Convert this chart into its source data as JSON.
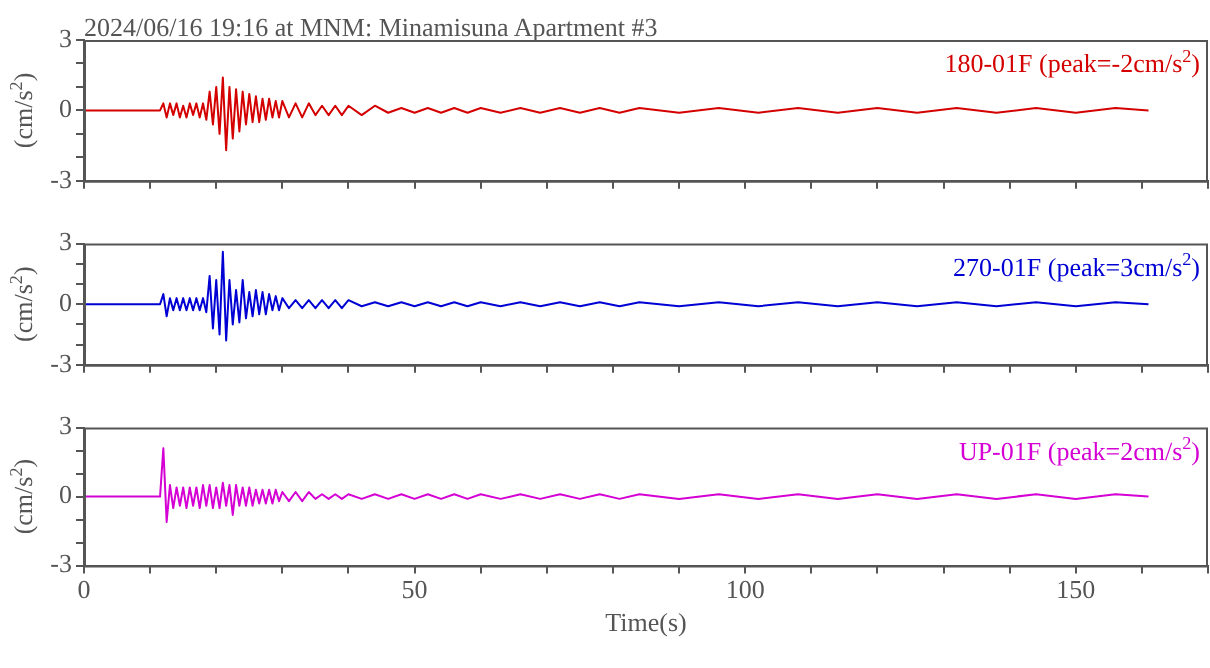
{
  "chart_data": [
    {
      "type": "line",
      "title": "2024/06/16 19:16 at MNM: Minamisuna Apartment #3",
      "ylabel": "(cm/s$^{2}$)",
      "xlim": [
        0,
        170
      ],
      "ylim": [
        -3,
        3
      ],
      "tick_labels": "y",
      "legend": false,
      "marker": "none",
      "xticks": [
        0,
        {
          "value": 10,
          "label": null
        },
        {
          "value": 20,
          "label": null
        },
        {
          "value": 30,
          "label": null
        },
        {
          "value": 40,
          "label": null
        },
        50,
        {
          "value": 60,
          "label": null
        },
        {
          "value": 70,
          "label": null
        },
        {
          "value": 80,
          "label": null
        },
        {
          "value": 90,
          "label": null
        },
        100,
        {
          "value": 110,
          "label": null
        },
        {
          "value": 120,
          "label": null
        },
        {
          "value": 130,
          "label": null
        },
        {
          "value": 140,
          "label": null
        },
        150,
        {
          "value": 160,
          "label": null
        },
        {
          "value": 170,
          "label": null
        }
      ],
      "yticks": [
        -3,
        {
          "value": -2,
          "label": null
        },
        {
          "value": -1,
          "label": null
        },
        0,
        {
          "value": 1,
          "label": null
        },
        {
          "value": 2,
          "label": null
        },
        3
      ],
      "x": [
        0,
        11.5,
        12,
        12.5,
        13,
        13.5,
        14,
        14.5,
        15,
        15.5,
        16,
        16.5,
        17,
        17.5,
        18,
        18.5,
        19,
        19.5,
        20,
        20.5,
        21,
        21.5,
        22,
        22.5,
        23,
        23.5,
        24,
        24.5,
        25,
        25.5,
        26,
        26.5,
        27,
        27.5,
        28,
        28.5,
        29,
        29.5,
        30,
        31,
        32,
        33,
        34,
        35,
        36,
        37,
        38,
        39,
        40,
        42,
        44,
        46,
        48,
        50,
        52,
        54,
        56,
        58,
        60,
        63,
        66,
        69,
        72,
        75,
        78,
        81,
        84,
        90,
        96,
        102,
        108,
        114,
        120,
        126,
        132,
        138,
        144,
        150,
        156,
        161
      ],
      "series": [
        {
          "name": "180-01F (peak=-2cm/s$^{2}$)",
          "color": "#d40000",
          "values": [
            0,
            0,
            0.3,
            -0.3,
            0.3,
            -0.2,
            0.3,
            -0.3,
            0.2,
            -0.3,
            0.3,
            -0.2,
            0.3,
            -0.3,
            0.3,
            -0.4,
            0.8,
            -0.6,
            1.0,
            -1.0,
            1.4,
            -1.7,
            1.0,
            -1.2,
            0.9,
            -0.9,
            0.8,
            -0.6,
            0.7,
            -0.5,
            0.6,
            -0.5,
            0.5,
            -0.4,
            0.5,
            -0.3,
            0.4,
            -0.3,
            0.4,
            -0.3,
            0.3,
            -0.3,
            0.3,
            -0.2,
            0.2,
            -0.2,
            0.2,
            -0.2,
            0.2,
            -0.2,
            0.2,
            -0.1,
            0.1,
            -0.1,
            0.1,
            -0.1,
            0.1,
            -0.1,
            0.1,
            -0.1,
            0.1,
            -0.1,
            0.1,
            -0.1,
            0.1,
            -0.1,
            0.1,
            -0.1,
            0.1,
            -0.1,
            0.1,
            -0.1,
            0.1,
            -0.1,
            0.1,
            -0.1,
            0.1,
            -0.1,
            0.1,
            0
          ]
        }
      ]
    },
    {
      "type": "line",
      "ylabel": "(cm/s$^{2}$)",
      "xlim": [
        0,
        170
      ],
      "ylim": [
        -3,
        3
      ],
      "tick_labels": "y",
      "legend": false,
      "marker": "none",
      "xticks": [
        0,
        {
          "value": 10,
          "label": null
        },
        {
          "value": 20,
          "label": null
        },
        {
          "value": 30,
          "label": null
        },
        {
          "value": 40,
          "label": null
        },
        50,
        {
          "value": 60,
          "label": null
        },
        {
          "value": 70,
          "label": null
        },
        {
          "value": 80,
          "label": null
        },
        {
          "value": 90,
          "label": null
        },
        100,
        {
          "value": 110,
          "label": null
        },
        {
          "value": 120,
          "label": null
        },
        {
          "value": 130,
          "label": null
        },
        {
          "value": 140,
          "label": null
        },
        150,
        {
          "value": 160,
          "label": null
        },
        {
          "value": 170,
          "label": null
        }
      ],
      "yticks": [
        -3,
        {
          "value": -2,
          "label": null
        },
        {
          "value": -1,
          "label": null
        },
        0,
        {
          "value": 1,
          "label": null
        },
        {
          "value": 2,
          "label": null
        },
        3
      ],
      "x": [
        0,
        11.5,
        12,
        12.5,
        13,
        13.5,
        14,
        14.5,
        15,
        15.5,
        16,
        16.5,
        17,
        17.5,
        18,
        18.5,
        19,
        19.5,
        20,
        20.5,
        21,
        21.5,
        22,
        22.5,
        23,
        23.5,
        24,
        24.5,
        25,
        25.5,
        26,
        26.5,
        27,
        27.5,
        28,
        28.5,
        29,
        29.5,
        30,
        31,
        32,
        33,
        34,
        35,
        36,
        37,
        38,
        39,
        40,
        42,
        44,
        46,
        48,
        50,
        52,
        54,
        56,
        58,
        60,
        63,
        66,
        69,
        72,
        75,
        78,
        81,
        84,
        90,
        96,
        102,
        108,
        114,
        120,
        126,
        132,
        138,
        144,
        150,
        156,
        161
      ],
      "series": [
        {
          "name": "270-01F (peak=3cm/s$^{2}$)",
          "color": "#0000d4",
          "values": [
            0,
            0,
            0.5,
            -0.6,
            0.3,
            -0.3,
            0.3,
            -0.3,
            0.3,
            -0.3,
            0.3,
            -0.3,
            0.3,
            -0.3,
            0.3,
            -0.4,
            1.4,
            -1.2,
            1.2,
            -1.5,
            2.6,
            -1.8,
            1.2,
            -1.0,
            0.7,
            -0.9,
            1.2,
            -0.7,
            0.6,
            -0.6,
            0.7,
            -0.5,
            0.6,
            -0.5,
            0.5,
            -0.3,
            0.4,
            -0.3,
            0.3,
            -0.2,
            0.2,
            -0.2,
            0.2,
            -0.2,
            0.2,
            -0.2,
            0.2,
            -0.2,
            0.2,
            -0.1,
            0.1,
            -0.1,
            0.1,
            -0.1,
            0.1,
            -0.1,
            0.1,
            -0.1,
            0.1,
            -0.1,
            0.1,
            -0.1,
            0.1,
            -0.1,
            0.1,
            -0.1,
            0.1,
            -0.1,
            0.1,
            -0.1,
            0.1,
            -0.1,
            0.1,
            -0.1,
            0.1,
            -0.1,
            0.1,
            -0.1,
            0.1,
            0
          ]
        }
      ]
    },
    {
      "type": "line",
      "ylabel": "(cm/s$^{2}$)",
      "xlabel": "Time(s)",
      "xlim": [
        0,
        170
      ],
      "ylim": [
        -3,
        3
      ],
      "legend": false,
      "marker": "none",
      "xticks": [
        0,
        {
          "value": 10,
          "label": null
        },
        {
          "value": 20,
          "label": null
        },
        {
          "value": 30,
          "label": null
        },
        {
          "value": 40,
          "label": null
        },
        50,
        {
          "value": 60,
          "label": null
        },
        {
          "value": 70,
          "label": null
        },
        {
          "value": 80,
          "label": null
        },
        {
          "value": 90,
          "label": null
        },
        100,
        {
          "value": 110,
          "label": null
        },
        {
          "value": 120,
          "label": null
        },
        {
          "value": 130,
          "label": null
        },
        {
          "value": 140,
          "label": null
        },
        150,
        {
          "value": 160,
          "label": null
        },
        {
          "value": 170,
          "label": null
        }
      ],
      "yticks": [
        -3,
        {
          "value": -2,
          "label": null
        },
        {
          "value": -1,
          "label": null
        },
        0,
        {
          "value": 1,
          "label": null
        },
        {
          "value": 2,
          "label": null
        },
        3
      ],
      "x": [
        0,
        11.5,
        12,
        12.5,
        13,
        13.5,
        14,
        14.5,
        15,
        15.5,
        16,
        16.5,
        17,
        17.5,
        18,
        18.5,
        19,
        19.5,
        20,
        20.5,
        21,
        21.5,
        22,
        22.5,
        23,
        23.5,
        24,
        24.5,
        25,
        25.5,
        26,
        26.5,
        27,
        27.5,
        28,
        28.5,
        29,
        29.5,
        30,
        31,
        32,
        33,
        34,
        35,
        36,
        37,
        38,
        39,
        40,
        42,
        44,
        46,
        48,
        50,
        52,
        54,
        56,
        58,
        60,
        63,
        66,
        69,
        72,
        75,
        78,
        81,
        84,
        90,
        96,
        102,
        108,
        114,
        120,
        126,
        132,
        138,
        144,
        150,
        156,
        161
      ],
      "series": [
        {
          "name": "UP-01F (peak=2cm/s$^{2}$)",
          "color": "#d400d4",
          "values": [
            0,
            0,
            2.1,
            -1.1,
            0.5,
            -0.5,
            0.4,
            -0.4,
            0.4,
            -0.5,
            0.4,
            -0.4,
            0.4,
            -0.5,
            0.5,
            -0.4,
            0.5,
            -0.5,
            0.4,
            -0.5,
            0.6,
            -0.4,
            0.5,
            -0.8,
            0.5,
            -0.4,
            0.4,
            -0.4,
            0.4,
            -0.4,
            0.3,
            -0.3,
            0.3,
            -0.3,
            0.3,
            -0.3,
            0.3,
            -0.2,
            0.2,
            -0.2,
            0.2,
            -0.2,
            0.2,
            -0.1,
            0.1,
            -0.1,
            0.1,
            -0.1,
            0.1,
            -0.1,
            0.1,
            -0.1,
            0.1,
            -0.1,
            0.1,
            -0.1,
            0.1,
            -0.1,
            0.1,
            -0.1,
            0.1,
            -0.1,
            0.1,
            -0.1,
            0.1,
            -0.1,
            0.1,
            -0.1,
            0.1,
            -0.1,
            0.1,
            -0.1,
            0.1,
            -0.1,
            0.1,
            -0.1,
            0.1,
            -0.1,
            0.1,
            0
          ]
        }
      ]
    }
  ]
}
